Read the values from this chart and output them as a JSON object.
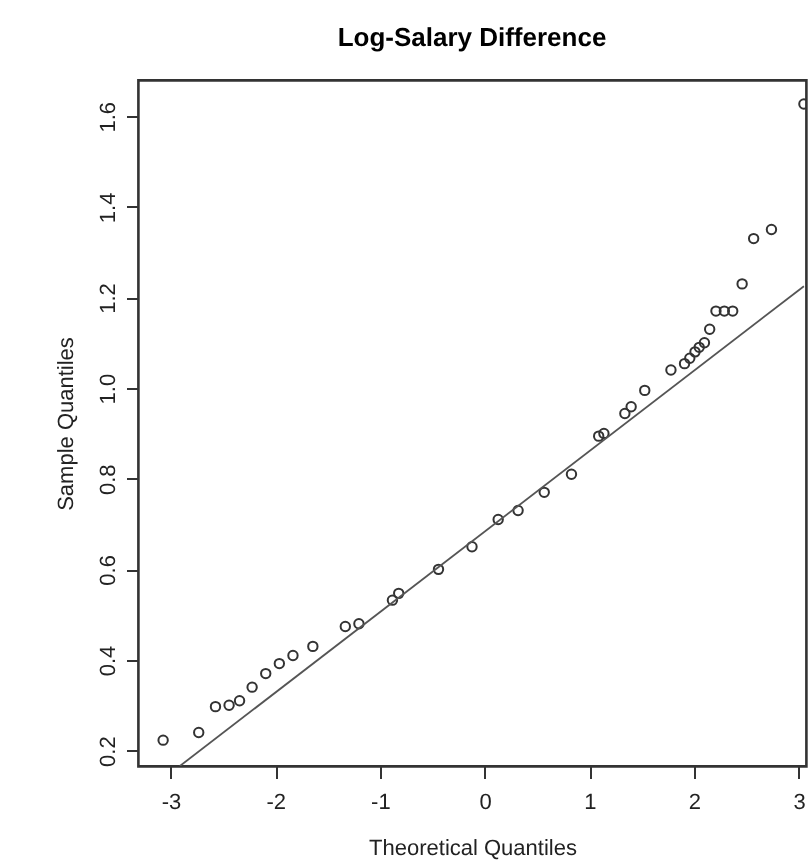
{
  "chart_data": {
    "type": "scatter",
    "title": "Log-Salary Difference",
    "xlabel": "Theoretical Quantiles",
    "ylabel": "Sample Quantiles",
    "xlim": [
      -3.31,
      3.07
    ],
    "ylim": [
      0.166,
      1.68
    ],
    "xticks": [
      -3,
      -2,
      -1,
      0,
      1,
      2,
      3
    ],
    "yticks": [
      0.2,
      0.4,
      0.6,
      0.8,
      {
        "value": 1.0,
        "label": "1.0"
      },
      1.2,
      1.4,
      1.6
    ],
    "grid": false,
    "series": [
      {
        "color": "#333333",
        "marker": "circle",
        "x": [
          -3.07,
          -2.73,
          -2.57,
          -2.44,
          -2.34,
          -2.22,
          -2.09,
          -1.96,
          -1.83,
          -1.64,
          -1.33,
          -1.2,
          -0.88,
          -0.82,
          -0.44,
          -0.12,
          0.13,
          0.32,
          0.57,
          0.83,
          1.09,
          1.14,
          1.34,
          1.4,
          1.53,
          1.78,
          1.91,
          1.96,
          2.01,
          2.05,
          2.1,
          2.15,
          2.21,
          2.29,
          2.37,
          2.46,
          2.57,
          2.74,
          3.05
        ],
        "values": [
          0.223,
          0.24,
          0.297,
          0.3,
          0.31,
          0.34,
          0.37,
          0.392,
          0.41,
          0.43,
          0.474,
          0.48,
          0.532,
          0.547,
          0.6,
          0.65,
          0.71,
          0.73,
          0.77,
          0.81,
          0.894,
          0.9,
          0.944,
          0.959,
          0.995,
          1.04,
          1.054,
          1.066,
          1.08,
          1.09,
          1.1,
          1.13,
          1.17,
          1.17,
          1.17,
          1.23,
          1.33,
          1.35,
          1.627
        ]
      },
      {
        "type": "line",
        "color": "#555555",
        "line_style": "solid",
        "marker": "none",
        "x": [
          -2.91,
          3.05
        ],
        "values": [
          0.166,
          1.225
        ]
      }
    ]
  }
}
